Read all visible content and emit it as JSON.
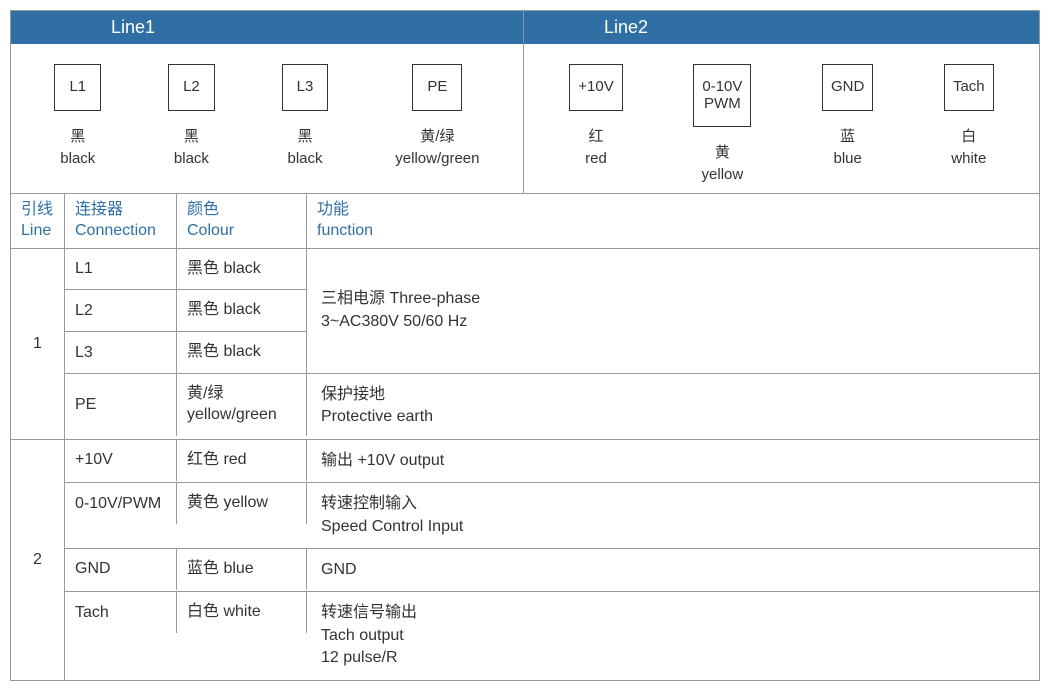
{
  "colors": {
    "header_bg": "#2f6fa3",
    "header_fg": "#ffffff",
    "border": "#999999",
    "text": "#333333",
    "accent": "#2f6fa3"
  },
  "topHeaders": {
    "line1": "Line1",
    "line2": "Line2"
  },
  "terminals": {
    "line1": [
      {
        "box": "L1",
        "cn": "黑",
        "en": "black"
      },
      {
        "box": "L2",
        "cn": "黑",
        "en": "black"
      },
      {
        "box": "L3",
        "cn": "黑",
        "en": "black"
      },
      {
        "box": "PE",
        "cn": "黄/绿",
        "en": "yellow/green"
      }
    ],
    "line2": [
      {
        "box": "+10V",
        "cn": "红",
        "en": "red"
      },
      {
        "box": "0-10V\nPWM",
        "cn": "黄",
        "en": "yellow"
      },
      {
        "box": "GND",
        "cn": "蓝",
        "en": "blue"
      },
      {
        "box": "Tach",
        "cn": "白",
        "en": "white"
      }
    ]
  },
  "lowerHeaders": {
    "line_cn": "引线",
    "line_en": "Line",
    "conn_cn": "连接器",
    "conn_en": "Connection",
    "color_cn": "颜色",
    "color_en": "Colour",
    "func_cn": "功能",
    "func_en": "function"
  },
  "lowerRows": [
    {
      "line": "1",
      "groups": [
        {
          "func": "三相电源 Three-phase\n3~AC380V 50/60 Hz",
          "items": [
            {
              "conn": "L1",
              "color": "黑色 black"
            },
            {
              "conn": "L2",
              "color": "黑色 black"
            },
            {
              "conn": "L3",
              "color": "黑色 black"
            }
          ]
        },
        {
          "func": "保护接地\nProtective earth",
          "items": [
            {
              "conn": "PE",
              "color": "黄/绿\nyellow/green"
            }
          ]
        }
      ]
    },
    {
      "line": "2",
      "groups": [
        {
          "func": "输出 +10V output",
          "items": [
            {
              "conn": "+10V",
              "color": "红色 red"
            }
          ]
        },
        {
          "func": "转速控制输入\nSpeed Control Input",
          "items": [
            {
              "conn": "0-10V/PWM",
              "color": "黄色 yellow"
            }
          ]
        },
        {
          "func": "GND",
          "items": [
            {
              "conn": "GND",
              "color": "蓝色 blue"
            }
          ]
        },
        {
          "func": "转速信号输出\nTach output\n12 pulse/R",
          "items": [
            {
              "conn": "Tach",
              "color": "白色 white"
            }
          ]
        }
      ]
    }
  ]
}
